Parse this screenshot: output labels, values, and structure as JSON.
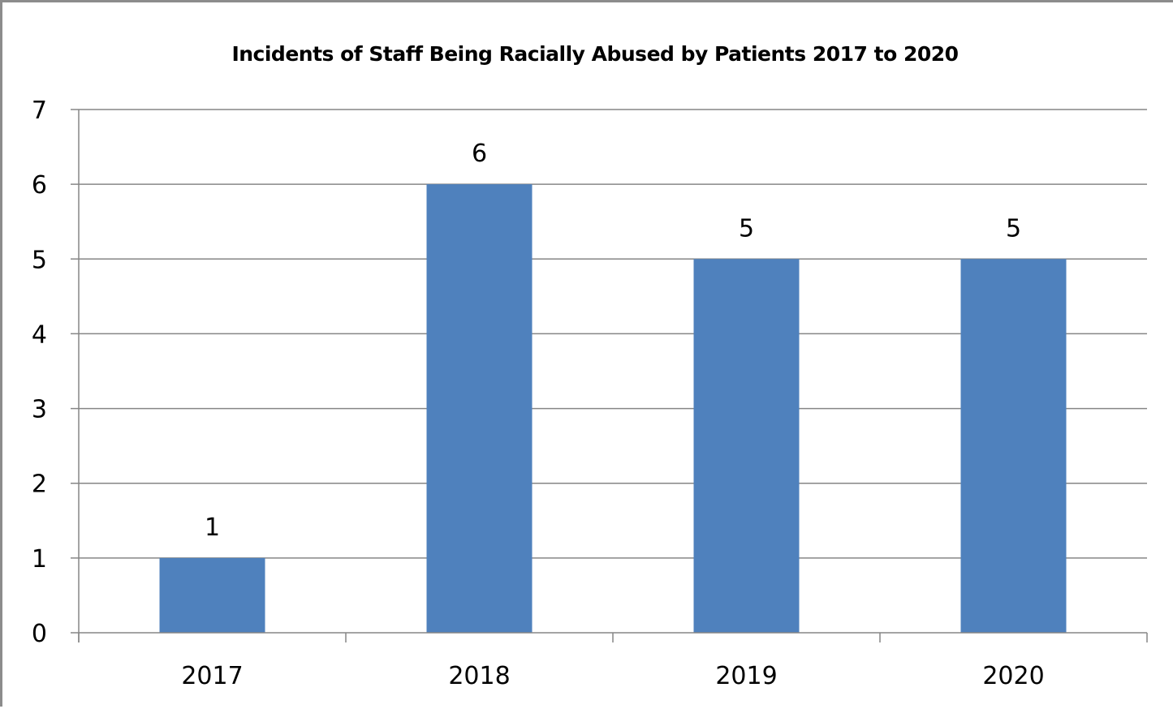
{
  "chart_data": {
    "type": "bar",
    "title": "Incidents of Staff Being Racially Abused by Patients 2017 to 2020",
    "xlabel": "",
    "ylabel": "",
    "categories": [
      "2017",
      "2018",
      "2019",
      "2020"
    ],
    "values": [
      1,
      6,
      5,
      5
    ],
    "data_labels": [
      "1",
      "6",
      "5",
      "5"
    ],
    "ylim": [
      0,
      7
    ],
    "yticks": [
      "0",
      "1",
      "2",
      "3",
      "4",
      "5",
      "6",
      "7"
    ],
    "grid": true,
    "legend": "none",
    "bar_color": "#4f81bd",
    "grid_color": "#868686"
  }
}
